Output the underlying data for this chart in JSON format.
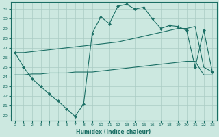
{
  "xlabel": "Humidex (Indice chaleur)",
  "bg_color": "#cce8e0",
  "grid_color": "#aaccC4",
  "line_color": "#1a6e64",
  "xlim": [
    -0.5,
    23.5
  ],
  "ylim": [
    19.5,
    31.7
  ],
  "xticks": [
    0,
    1,
    2,
    3,
    4,
    5,
    6,
    7,
    8,
    9,
    10,
    11,
    12,
    13,
    14,
    15,
    16,
    17,
    18,
    19,
    20,
    21,
    22,
    23
  ],
  "yticks": [
    20,
    21,
    22,
    23,
    24,
    25,
    26,
    27,
    28,
    29,
    30,
    31
  ],
  "line1_x": [
    0,
    1,
    2,
    3,
    4,
    5,
    6,
    7,
    8,
    9,
    10,
    11,
    12,
    13,
    14,
    15,
    16,
    17,
    18,
    19,
    20,
    21,
    22,
    23
  ],
  "line1_y": [
    26.5,
    25.0,
    23.8,
    23.0,
    22.2,
    21.5,
    20.7,
    19.9,
    21.2,
    28.5,
    30.2,
    29.5,
    31.3,
    31.5,
    31.0,
    31.2,
    30.0,
    29.0,
    29.3,
    29.2,
    28.8,
    25.0,
    28.8,
    24.5
  ],
  "line2_x": [
    0,
    1,
    2,
    3,
    4,
    5,
    6,
    7,
    8,
    9,
    10,
    11,
    12,
    13,
    14,
    15,
    16,
    17,
    18,
    19,
    20,
    21,
    22,
    23
  ],
  "line2_y": [
    26.5,
    26.5,
    26.6,
    26.7,
    26.8,
    26.9,
    27.0,
    27.1,
    27.2,
    27.3,
    27.4,
    27.5,
    27.6,
    27.8,
    28.0,
    28.2,
    28.4,
    28.6,
    28.8,
    29.0,
    29.0,
    29.2,
    25.0,
    24.5
  ],
  "line3_x": [
    0,
    1,
    2,
    3,
    4,
    5,
    6,
    7,
    8,
    9,
    10,
    11,
    12,
    13,
    14,
    15,
    16,
    17,
    18,
    19,
    20,
    21,
    22,
    23
  ],
  "line3_y": [
    24.2,
    24.2,
    24.3,
    24.3,
    24.4,
    24.4,
    24.4,
    24.5,
    24.5,
    24.5,
    24.6,
    24.7,
    24.8,
    24.9,
    25.0,
    25.1,
    25.2,
    25.3,
    25.4,
    25.5,
    25.6,
    25.6,
    24.2,
    24.2
  ]
}
